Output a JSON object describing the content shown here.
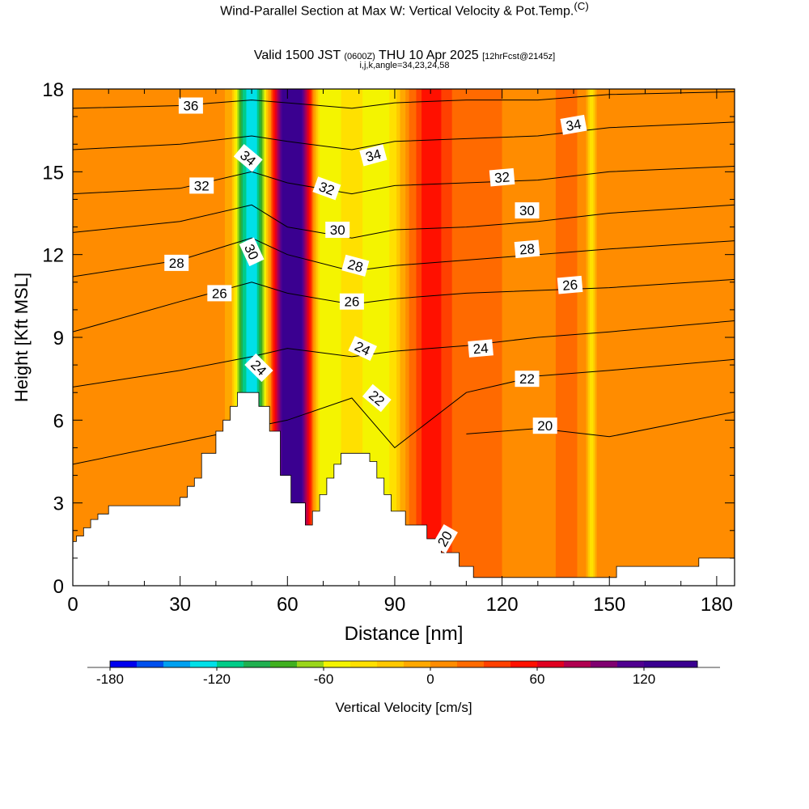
{
  "header": {
    "title": "Wind-Parallel Section at Max W: Vertical Velocity & Pot.Temp.",
    "copyright": "(C)",
    "valid_prefix": "Valid 1500 JST",
    "valid_utc": "(0600Z)",
    "valid_date": "THU 10 Apr 2025",
    "forecast": "[12hrFcst@2145z]",
    "indices": "i,j,k,angle=34,23,24,58"
  },
  "chart_data": {
    "type": "heatmap",
    "title": "Wind-Parallel Section at Max W: Vertical Velocity & Pot.Temp.",
    "xlabel": "Distance [nm]",
    "ylabel": "Height [Kft MSL]",
    "xlim": [
      0,
      185
    ],
    "ylim": [
      0,
      18
    ],
    "xticks": [
      0,
      30,
      60,
      90,
      120,
      150,
      180
    ],
    "yticks": [
      0,
      3,
      6,
      9,
      12,
      15,
      18
    ],
    "colorbar": {
      "label": "Vertical Velocity [cm/s]",
      "ticks": [
        -180,
        -120,
        -60,
        0,
        60,
        120
      ],
      "bounds": [
        -180,
        -165,
        -150,
        -135,
        -120,
        -105,
        -90,
        -75,
        -60,
        -45,
        -30,
        -15,
        0,
        15,
        30,
        45,
        60,
        75,
        90,
        105,
        120,
        135,
        150
      ],
      "colors": [
        "#0000ee",
        "#0050ee",
        "#00a0f0",
        "#00e0e8",
        "#00cc88",
        "#20b050",
        "#40b020",
        "#9ad61a",
        "#f4f400",
        "#ffe000",
        "#ffc800",
        "#ffa800",
        "#ff8c00",
        "#ff6a00",
        "#ff4000",
        "#ff1000",
        "#e00020",
        "#b00050",
        "#800070",
        "#500090",
        "#3a0090",
        "#3a0090"
      ]
    },
    "terrain": {
      "x": [
        0,
        0,
        1,
        1,
        3,
        3,
        5,
        5,
        7,
        7,
        10,
        10,
        17,
        17,
        30,
        30,
        32,
        32,
        34,
        34,
        36,
        36,
        40,
        40,
        42,
        42,
        44,
        44,
        46,
        46,
        52,
        52,
        55,
        55,
        58,
        58,
        61,
        61,
        65,
        65,
        67,
        67,
        69,
        69,
        71,
        71,
        73,
        73,
        75,
        75,
        81,
        81,
        83,
        83,
        85,
        85,
        87,
        87,
        89,
        89,
        93,
        93,
        99,
        99,
        103,
        103,
        108,
        108,
        112,
        112,
        120,
        120,
        128,
        128,
        140,
        140,
        152,
        152,
        158,
        158,
        175,
        175,
        185
      ],
      "y": [
        1.5,
        1.6,
        1.6,
        1.8,
        1.8,
        2.1,
        2.1,
        2.4,
        2.4,
        2.6,
        2.6,
        2.9,
        2.9,
        2.9,
        2.9,
        3.2,
        3.2,
        3.6,
        3.6,
        3.9,
        3.9,
        4.8,
        4.8,
        5.6,
        5.6,
        6.0,
        6.0,
        6.5,
        6.5,
        7.0,
        7.0,
        6.5,
        6.5,
        5.6,
        5.6,
        4.0,
        4.0,
        3.0,
        3.0,
        2.2,
        2.2,
        2.7,
        2.7,
        3.3,
        3.3,
        3.9,
        3.9,
        4.4,
        4.4,
        4.8,
        4.8,
        4.8,
        4.8,
        4.5,
        4.5,
        3.9,
        3.9,
        3.3,
        3.3,
        2.7,
        2.7,
        2.2,
        2.2,
        1.7,
        1.7,
        1.2,
        1.2,
        0.7,
        0.7,
        0.3,
        0.3,
        0.3,
        0.3,
        0.3,
        0.3,
        0.3,
        0.3,
        0.7,
        0.7,
        0.7,
        0.7,
        1.0,
        1.0
      ]
    },
    "wv_profile": {
      "x": [
        0,
        20,
        35,
        42,
        44,
        45,
        46,
        47,
        48,
        49,
        50,
        51,
        52,
        53,
        54,
        55,
        56,
        57,
        58,
        59,
        60,
        61,
        62,
        63,
        64,
        65,
        66,
        67,
        68,
        69,
        70,
        72,
        75,
        78,
        80,
        82,
        85,
        88,
        90,
        92,
        94,
        96,
        98,
        100,
        102,
        104,
        106,
        110,
        120,
        130,
        140,
        143,
        145,
        147,
        150,
        160,
        170,
        185
      ],
      "w": [
        12,
        14,
        10,
        5,
        -10,
        -30,
        -60,
        -90,
        -115,
        -125,
        -130,
        -125,
        -110,
        -80,
        -40,
        0,
        40,
        80,
        110,
        130,
        145,
        150,
        150,
        140,
        120,
        90,
        60,
        20,
        -20,
        -45,
        -55,
        -55,
        -45,
        -35,
        -40,
        -50,
        -58,
        -50,
        -35,
        -10,
        15,
        30,
        50,
        55,
        50,
        40,
        30,
        20,
        15,
        12,
        18,
        10,
        -40,
        10,
        15,
        12,
        10,
        12
      ]
    },
    "series": [
      {
        "name": "20",
        "x": [
          110,
          130,
          150,
          185
        ],
        "y": [
          5.5,
          5.7,
          5.4,
          6.3
        ]
      },
      {
        "name": "22",
        "x": [
          0,
          30,
          60,
          78,
          90,
          110,
          130,
          150,
          185
        ],
        "y": [
          4.4,
          5.2,
          6.0,
          6.8,
          5.0,
          7.0,
          7.6,
          7.8,
          8.2
        ]
      },
      {
        "name": "24",
        "x": [
          0,
          30,
          50,
          60,
          78,
          90,
          110,
          130,
          150,
          185
        ],
        "y": [
          7.2,
          7.8,
          8.3,
          8.6,
          8.3,
          8.5,
          8.7,
          9.0,
          9.2,
          9.6
        ]
      },
      {
        "name": "26",
        "x": [
          0,
          30,
          50,
          60,
          78,
          90,
          110,
          130,
          150,
          185
        ],
        "y": [
          9.2,
          10.3,
          11.0,
          10.6,
          10.2,
          10.4,
          10.6,
          10.7,
          10.8,
          11.1
        ]
      },
      {
        "name": "28",
        "x": [
          0,
          30,
          50,
          60,
          78,
          90,
          110,
          130,
          150,
          185
        ],
        "y": [
          11.2,
          11.8,
          12.6,
          12.0,
          11.4,
          11.6,
          11.8,
          12.0,
          12.2,
          12.5
        ]
      },
      {
        "name": "30",
        "x": [
          0,
          30,
          50,
          60,
          78,
          90,
          110,
          130,
          150,
          185
        ],
        "y": [
          12.8,
          13.2,
          13.8,
          13.0,
          12.6,
          12.9,
          13.0,
          13.2,
          13.5,
          13.8
        ]
      },
      {
        "name": "32",
        "x": [
          0,
          30,
          50,
          60,
          78,
          90,
          110,
          130,
          150,
          185
        ],
        "y": [
          14.2,
          14.4,
          15.0,
          14.6,
          14.2,
          14.5,
          14.6,
          14.7,
          15.0,
          15.2
        ]
      },
      {
        "name": "34",
        "x": [
          0,
          30,
          50,
          60,
          78,
          90,
          110,
          130,
          150,
          185
        ],
        "y": [
          15.8,
          16.0,
          16.3,
          16.1,
          15.8,
          16.1,
          16.2,
          16.3,
          16.6,
          16.8
        ]
      },
      {
        "name": "36",
        "x": [
          0,
          30,
          50,
          60,
          78,
          90,
          110,
          130,
          150,
          185
        ],
        "y": [
          17.3,
          17.4,
          17.6,
          17.5,
          17.3,
          17.5,
          17.6,
          17.6,
          17.8,
          17.9
        ]
      }
    ],
    "contour_labels": [
      {
        "text": "36",
        "x": 33,
        "y": 17.4,
        "angle": 0
      },
      {
        "text": "34",
        "x": 49,
        "y": 15.5,
        "angle": 40
      },
      {
        "text": "32",
        "x": 36,
        "y": 14.5,
        "angle": 0
      },
      {
        "text": "30",
        "x": 50,
        "y": 12.1,
        "angle": 65
      },
      {
        "text": "28",
        "x": 29,
        "y": 11.7,
        "angle": 0
      },
      {
        "text": "26",
        "x": 41,
        "y": 10.6,
        "angle": 0
      },
      {
        "text": "24",
        "x": 52,
        "y": 7.9,
        "angle": 45
      },
      {
        "text": "34",
        "x": 84,
        "y": 15.6,
        "angle": -15
      },
      {
        "text": "32",
        "x": 71,
        "y": 14.4,
        "angle": 20
      },
      {
        "text": "30",
        "x": 74,
        "y": 12.9,
        "angle": 0
      },
      {
        "text": "28",
        "x": 79,
        "y": 11.6,
        "angle": 15
      },
      {
        "text": "26",
        "x": 78,
        "y": 10.3,
        "angle": 0
      },
      {
        "text": "24",
        "x": 81,
        "y": 8.6,
        "angle": 25
      },
      {
        "text": "22",
        "x": 85,
        "y": 6.8,
        "angle": 40
      },
      {
        "text": "34",
        "x": 140,
        "y": 16.7,
        "angle": -10
      },
      {
        "text": "32",
        "x": 120,
        "y": 14.8,
        "angle": -5
      },
      {
        "text": "30",
        "x": 127,
        "y": 13.6,
        "angle": 0
      },
      {
        "text": "28",
        "x": 127,
        "y": 12.2,
        "angle": -5
      },
      {
        "text": "26",
        "x": 139,
        "y": 10.9,
        "angle": -5
      },
      {
        "text": "24",
        "x": 114,
        "y": 8.6,
        "angle": -5
      },
      {
        "text": "22",
        "x": 127,
        "y": 7.5,
        "angle": 0
      },
      {
        "text": "20",
        "x": 132,
        "y": 5.8,
        "angle": 0
      },
      {
        "text": "20",
        "x": 104,
        "y": 1.7,
        "angle": -60
      }
    ]
  }
}
